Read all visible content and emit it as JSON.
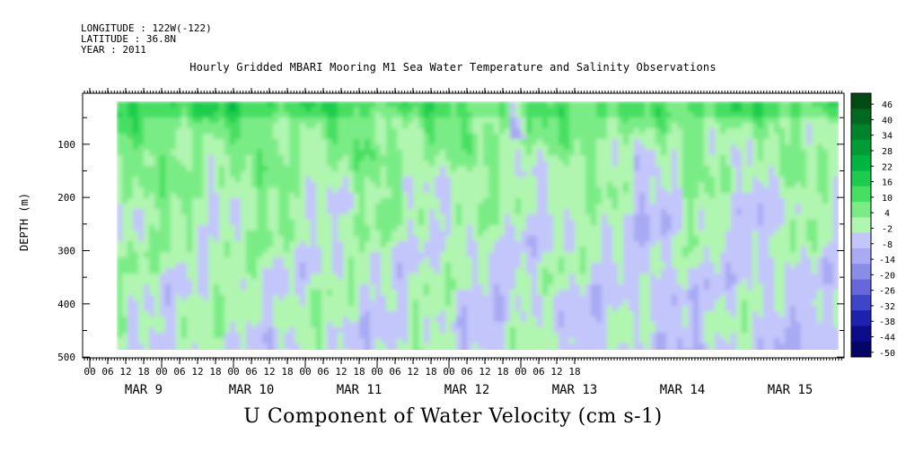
{
  "header": {
    "longitude": "LONGITUDE : 122W(-122)",
    "latitude": "LATITUDE : 36.8N",
    "year": "YEAR : 2011"
  },
  "chart_data": {
    "type": "heatmap",
    "title": "Hourly Gridded MBARI Mooring M1 Sea Water Temperature and Salinity Observations",
    "xlabel": "U Component of Water Velocity (cm s-1)",
    "ylabel": "DEPTH (m)",
    "y_axis": {
      "range": [
        500,
        0
      ],
      "ticks": [
        100,
        200,
        300,
        400,
        500
      ],
      "inverted": true
    },
    "x_axis": {
      "hour_ticks": [
        "00",
        "06",
        "12",
        "18",
        "00",
        "06",
        "12",
        "18",
        "00",
        "06",
        "12",
        "18",
        "00",
        "06",
        "12",
        "18",
        "00",
        "06",
        "12",
        "18",
        "00",
        "06",
        "12",
        "18",
        "00",
        "06",
        "12",
        "18"
      ],
      "day_labels": [
        "MAR  9",
        "MAR 10",
        "MAR 11",
        "MAR 12",
        "MAR 13",
        "MAR 14",
        "MAR 15"
      ]
    },
    "data_extent": {
      "start": "MAR 9 06:00",
      "end": "MAR 15 23:00",
      "depth_range_m": [
        18,
        490
      ]
    },
    "colorbar": {
      "labels": [
        "46",
        "40",
        "34",
        "28",
        "22",
        "16",
        "10",
        "4",
        "-2",
        "-8",
        "-14",
        "-20",
        "-26",
        "-32",
        "-38",
        "-44",
        "-50"
      ],
      "colors": [
        "#004a14",
        "#006820",
        "#00832b",
        "#009c36",
        "#00b440",
        "#1ccd4d",
        "#46df62",
        "#7aec85",
        "#b0f5b0",
        "#c3c6fa",
        "#a8aaf3",
        "#8a8de8",
        "#6668da",
        "#4045c8",
        "#1f22ad",
        "#0c0c8a",
        "#050566"
      ]
    }
  }
}
